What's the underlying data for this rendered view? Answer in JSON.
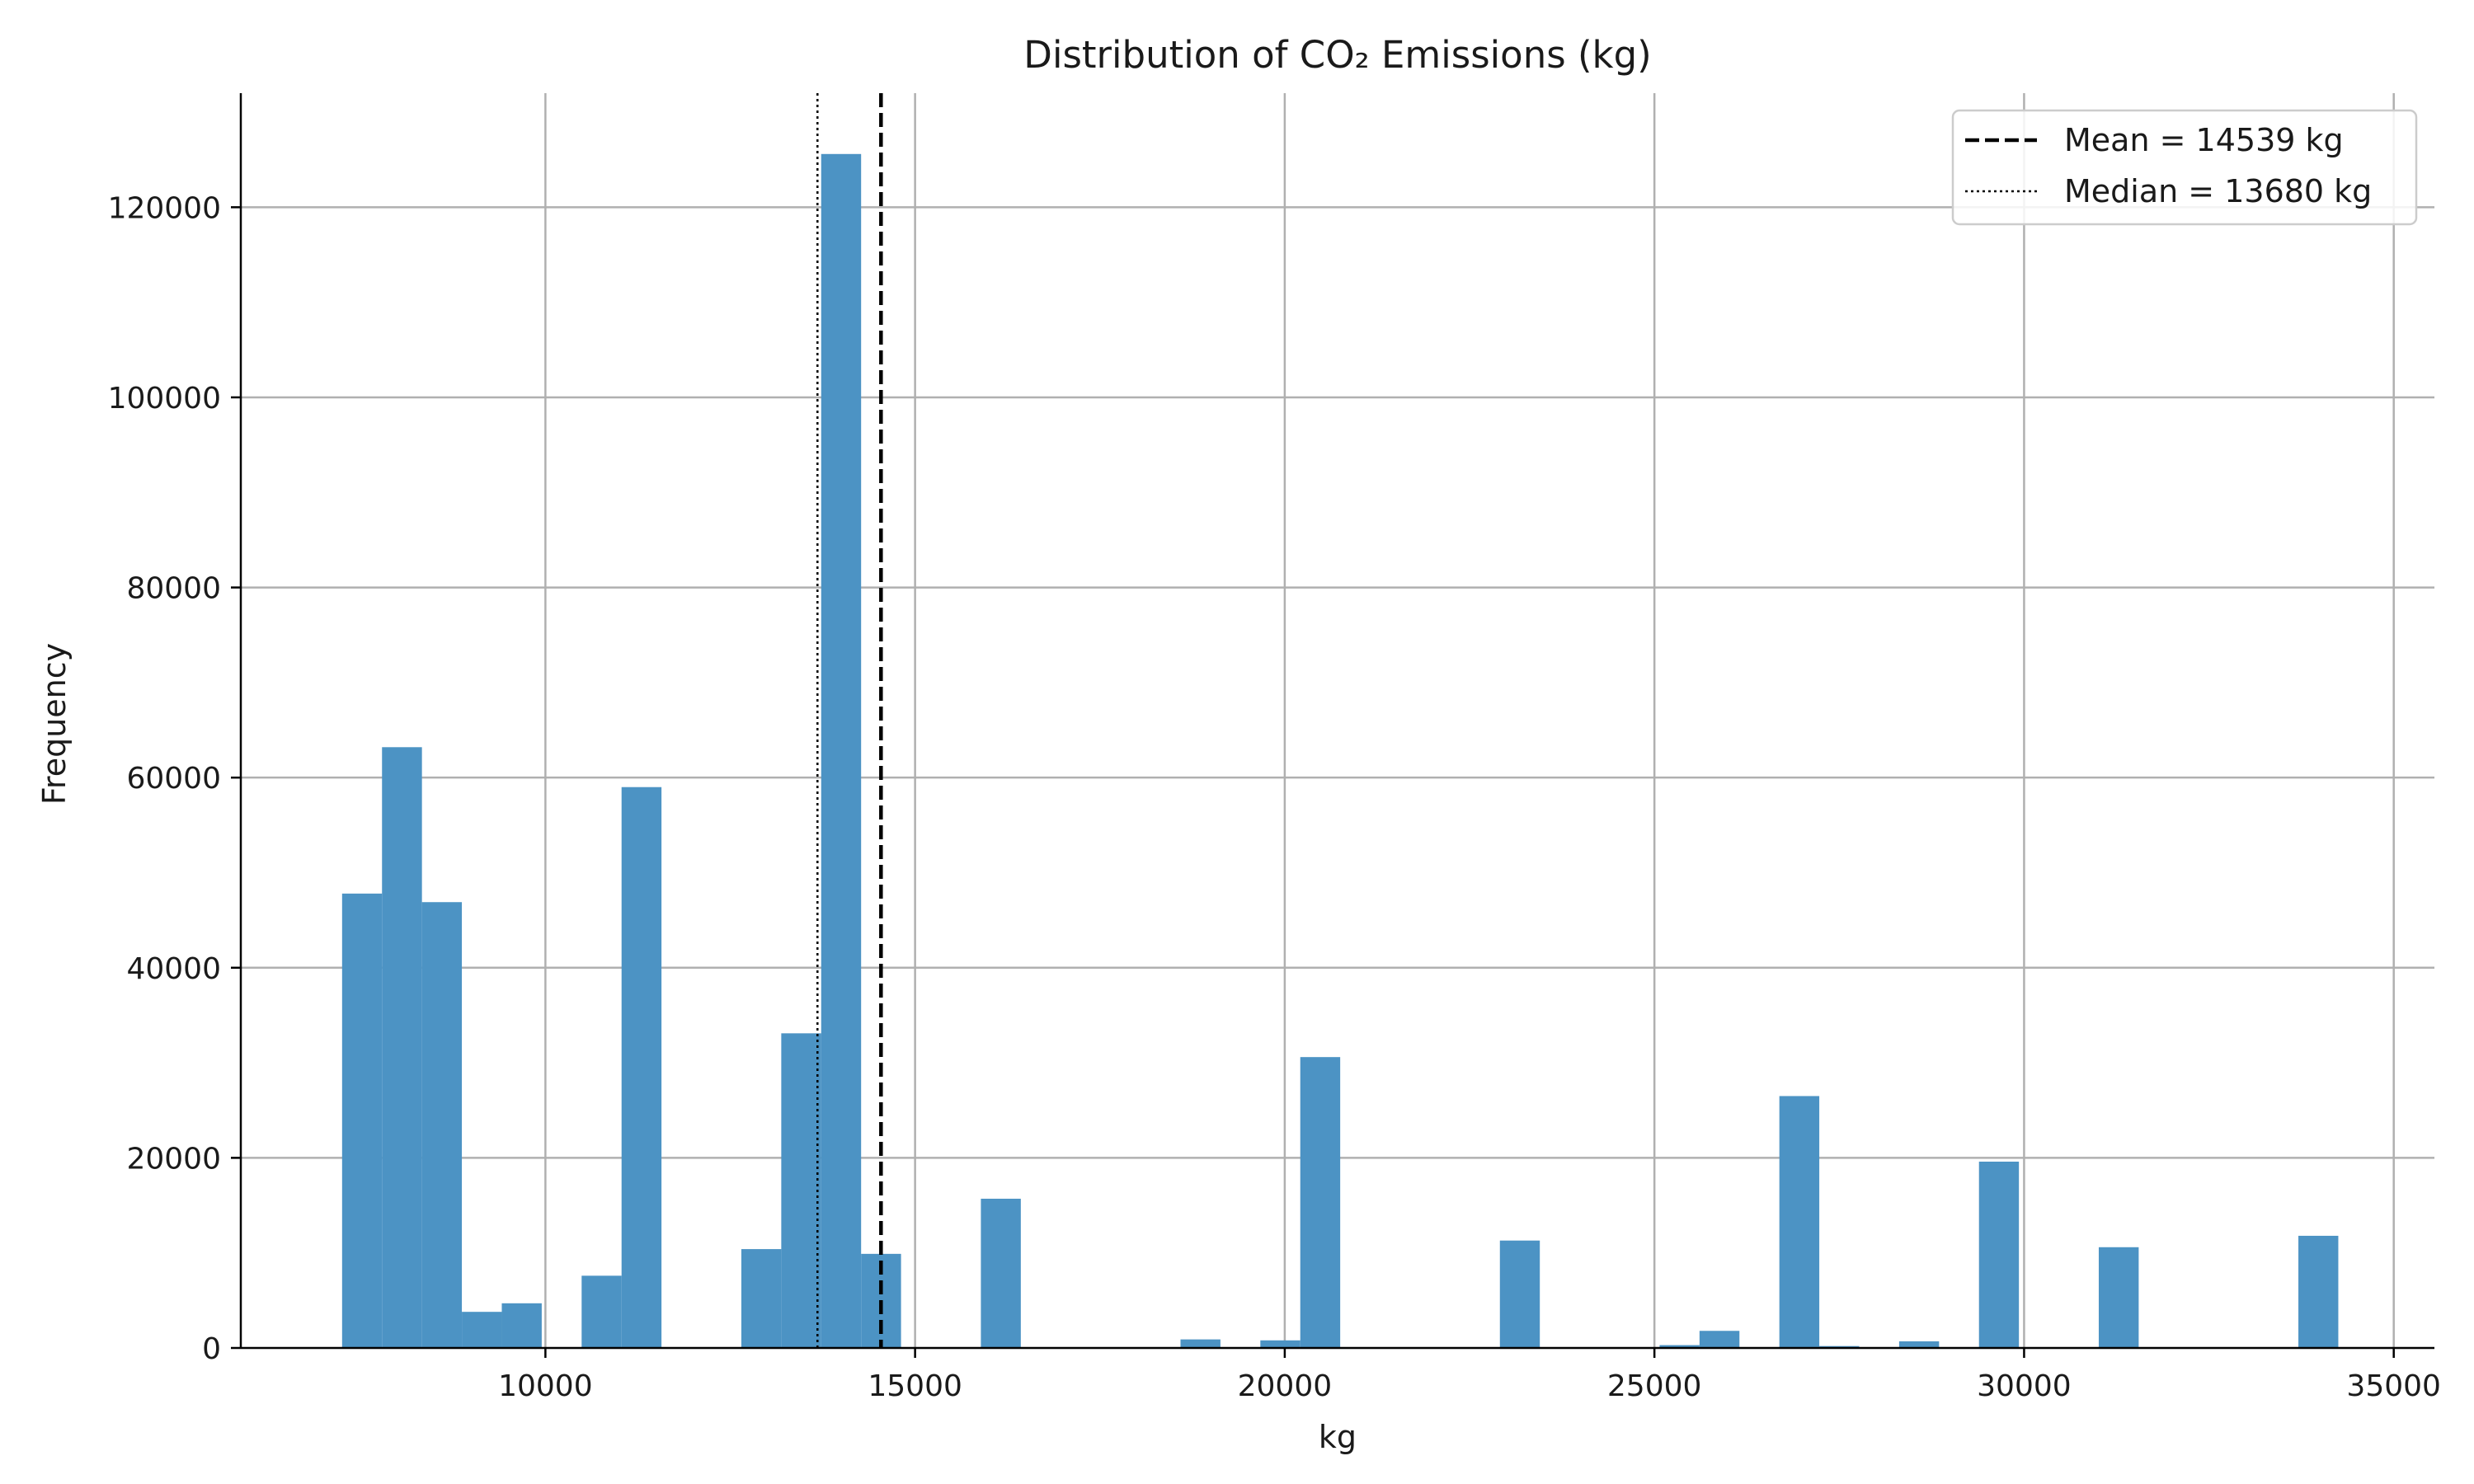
{
  "chart_data": {
    "type": "bar",
    "title": "Distribution of CO₂ Emissions (kg)",
    "xlabel": "kg",
    "ylabel": "Frequency",
    "xlim": [
      5880,
      35550
    ],
    "ylim": [
      0,
      132000
    ],
    "xticks": [
      10000,
      15000,
      20000,
      25000,
      30000,
      35000
    ],
    "yticks": [
      0,
      20000,
      40000,
      60000,
      80000,
      100000,
      120000
    ],
    "grid": true,
    "legend_position": "top-right",
    "bar_color": "#4c93c4",
    "bin_width": 540,
    "bins": [
      {
        "x0": 7250,
        "count": 47800
      },
      {
        "x0": 7790,
        "count": 63200
      },
      {
        "x0": 8330,
        "count": 46900
      },
      {
        "x0": 8870,
        "count": 3800
      },
      {
        "x0": 9410,
        "count": 4700
      },
      {
        "x0": 10490,
        "count": 7600
      },
      {
        "x0": 11030,
        "count": 59000
      },
      {
        "x0": 12650,
        "count": 10400
      },
      {
        "x0": 13190,
        "count": 33100
      },
      {
        "x0": 13730,
        "count": 125600
      },
      {
        "x0": 14270,
        "count": 9900
      },
      {
        "x0": 15890,
        "count": 15700
      },
      {
        "x0": 18590,
        "count": 900
      },
      {
        "x0": 19670,
        "count": 800
      },
      {
        "x0": 20210,
        "count": 30600
      },
      {
        "x0": 22910,
        "count": 11300
      },
      {
        "x0": 25070,
        "count": 300
      },
      {
        "x0": 25610,
        "count": 1800
      },
      {
        "x0": 26690,
        "count": 26500
      },
      {
        "x0": 27230,
        "count": 200
      },
      {
        "x0": 28310,
        "count": 700
      },
      {
        "x0": 29390,
        "count": 19600
      },
      {
        "x0": 31010,
        "count": 10600
      },
      {
        "x0": 33710,
        "count": 11800
      }
    ],
    "reference_lines": [
      {
        "name": "Mean = 14539 kg",
        "value": 14539,
        "style": "dashed",
        "color": "#000000"
      },
      {
        "name": "Median = 13680 kg",
        "value": 13680,
        "style": "dotted",
        "color": "#000000"
      }
    ]
  }
}
